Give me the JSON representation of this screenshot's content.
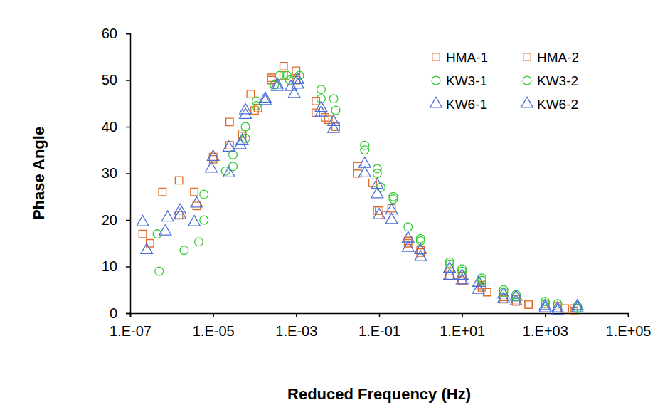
{
  "chart_data": {
    "type": "scatter",
    "x_label": "Reduced Frequency (Hz)",
    "y_label": "Phase Angle",
    "log": "x",
    "grid": false,
    "legend": "upper right",
    "xlim": [
      1e-07,
      100000.0
    ],
    "xticks": [
      {
        "value": 1e-07,
        "label": "1.E-07"
      },
      {
        "value": 1e-05,
        "label": "1.E-05"
      },
      {
        "value": 0.001,
        "label": "1.E-03"
      },
      {
        "value": 0.1,
        "label": "1.E-01"
      },
      {
        "value": 10,
        "label": "1.E+01"
      },
      {
        "value": 1000,
        "label": "1.E+03"
      },
      {
        "value": 100000,
        "label": "1.E+05"
      }
    ],
    "ylim": [
      0,
      60
    ],
    "yticks": [
      0,
      10,
      20,
      30,
      40,
      50,
      60
    ],
    "series": [
      {
        "name": "HMA-1",
        "color": "#e26b2a",
        "marker": "square",
        "x": [
          2e-07,
          6e-07,
          1.5e-06,
          3.5e-06,
          1e-05,
          2.5e-05,
          5e-05,
          8e-05,
          0.00012,
          0.00025,
          0.0005,
          0.001,
          0.003,
          0.005,
          0.009,
          0.03,
          0.07,
          0.1,
          0.2,
          0.5,
          1,
          5,
          10,
          30,
          40,
          100,
          200,
          400,
          1000,
          3000,
          5000
        ],
        "values": [
          17,
          26,
          28.5,
          26,
          33.5,
          41,
          38,
          47,
          44,
          50,
          53,
          52,
          45.5,
          42,
          40,
          31.5,
          28,
          22,
          22.5,
          15.5,
          13,
          9,
          8,
          6,
          4.5,
          3.5,
          3,
          2,
          2,
          1,
          0.5
        ]
      },
      {
        "name": "HMA-2",
        "color": "#e26b2a",
        "marker": "square",
        "x": [
          3e-07,
          1.5e-06,
          4e-06,
          1e-05,
          2.5e-05,
          5e-05,
          0.0001,
          0.00025,
          0.0005,
          0.001,
          0.003,
          0.006,
          0.03,
          0.09,
          0.15,
          0.5,
          1,
          5,
          10,
          30,
          100,
          200,
          400,
          2000,
          5000
        ],
        "values": [
          15,
          21,
          23,
          33,
          36,
          38.5,
          43.5,
          50.5,
          51,
          50,
          43,
          41.5,
          30,
          22,
          21,
          15,
          13.5,
          8,
          7,
          5.5,
          3,
          2.5,
          1.8,
          1.5,
          1
        ]
      },
      {
        "name": "KW3-1",
        "color": "#33cc33",
        "marker": "circle",
        "x": [
          4.5e-07,
          2e-06,
          4.5e-06,
          6e-06,
          2e-05,
          3e-05,
          6e-05,
          0.00011,
          0.0004,
          0.0006,
          0.0012,
          0.004,
          0.008,
          0.045,
          0.09,
          0.11,
          0.22,
          0.5,
          1,
          5,
          10,
          30,
          100,
          200,
          1000,
          2000,
          6000
        ],
        "values": [
          17,
          13.5,
          15.3,
          25.5,
          30.5,
          31.5,
          40,
          45.5,
          51,
          51,
          51,
          48,
          46,
          36,
          31,
          27,
          25,
          18.5,
          16,
          11,
          9.5,
          7.5,
          5,
          4,
          2.5,
          2,
          1.5
        ]
      },
      {
        "name": "KW3-2",
        "color": "#33cc33",
        "marker": "circle",
        "x": [
          5e-07,
          6e-06,
          3e-05,
          6e-05,
          0.00011,
          0.0003,
          0.0007,
          0.004,
          0.009,
          0.045,
          0.09,
          0.22,
          1,
          5,
          10,
          30,
          100,
          200,
          1000,
          6000
        ],
        "values": [
          9,
          20,
          34,
          37.5,
          44.5,
          49,
          50,
          46,
          43.5,
          35,
          30,
          24.5,
          15.5,
          10.5,
          9,
          7,
          4.5,
          3.5,
          2,
          1
        ]
      },
      {
        "name": "KW6-1",
        "color": "#4a6fd8",
        "marker": "triangle",
        "x": [
          2e-07,
          8e-07,
          1.6e-06,
          4e-06,
          1e-05,
          2.4e-05,
          5e-05,
          6e-05,
          0.00018,
          0.00035,
          0.00075,
          0.0011,
          0.004,
          0.008,
          0.045,
          0.09,
          0.2,
          0.5,
          1,
          5,
          10,
          25,
          100,
          200,
          1000,
          2000,
          6000
        ],
        "values": [
          19.5,
          20.5,
          22,
          23.5,
          33.5,
          35.5,
          37,
          43.5,
          46,
          49,
          48.5,
          50,
          44,
          41,
          32,
          27.5,
          22,
          16,
          13.5,
          9.5,
          8,
          6.5,
          4,
          3.5,
          1.5,
          1,
          1.5
        ]
      },
      {
        "name": "KW6-2",
        "color": "#4a6fd8",
        "marker": "triangle",
        "x": [
          2.5e-07,
          7e-07,
          1.6e-06,
          3.5e-06,
          9e-06,
          2.4e-05,
          4.5e-05,
          6e-05,
          0.00018,
          0.00035,
          0.0009,
          0.0011,
          0.004,
          0.008,
          0.045,
          0.09,
          0.1,
          0.2,
          0.5,
          1,
          5,
          10,
          25,
          100,
          200,
          1000,
          2000,
          6000
        ],
        "values": [
          13.5,
          17.5,
          21,
          19.5,
          31,
          30,
          36,
          42.5,
          45.5,
          48.5,
          47,
          49,
          43,
          39.5,
          30,
          25.5,
          21,
          20,
          14,
          12,
          8,
          7,
          5,
          3,
          2.5,
          1,
          0.5,
          1
        ]
      }
    ]
  }
}
